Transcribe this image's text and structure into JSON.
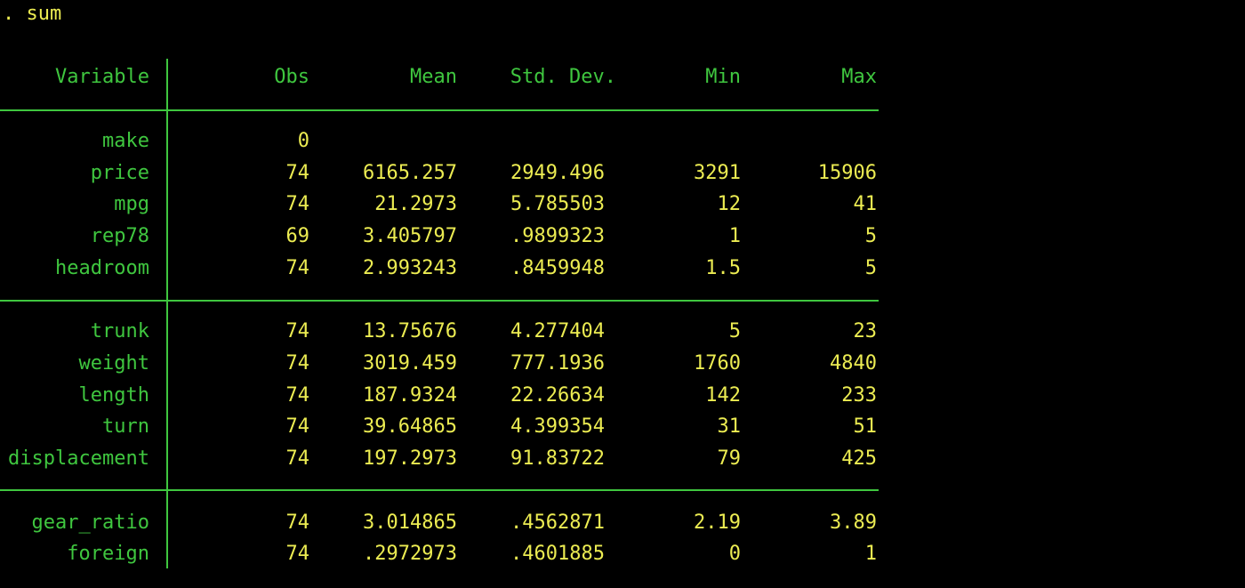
{
  "command": ". sum",
  "colors": {
    "background": "#000000",
    "label_green": "#3fc63f",
    "value_yellow": "#ecec52"
  },
  "headers": {
    "variable": "Variable",
    "obs": "Obs",
    "mean": "Mean",
    "sd": "Std. Dev.",
    "min": "Min",
    "max": "Max"
  },
  "rows": [
    {
      "variable": "make",
      "obs": "0",
      "mean": "",
      "sd": "",
      "min": "",
      "max": ""
    },
    {
      "variable": "price",
      "obs": "74",
      "mean": "6165.257",
      "sd": "2949.496",
      "min": "3291",
      "max": "15906"
    },
    {
      "variable": "mpg",
      "obs": "74",
      "mean": "21.2973",
      "sd": "5.785503",
      "min": "12",
      "max": "41"
    },
    {
      "variable": "rep78",
      "obs": "69",
      "mean": "3.405797",
      "sd": ".9899323",
      "min": "1",
      "max": "5"
    },
    {
      "variable": "headroom",
      "obs": "74",
      "mean": "2.993243",
      "sd": ".8459948",
      "min": "1.5",
      "max": "5"
    },
    {
      "variable": "trunk",
      "obs": "74",
      "mean": "13.75676",
      "sd": "4.277404",
      "min": "5",
      "max": "23"
    },
    {
      "variable": "weight",
      "obs": "74",
      "mean": "3019.459",
      "sd": "777.1936",
      "min": "1760",
      "max": "4840"
    },
    {
      "variable": "length",
      "obs": "74",
      "mean": "187.9324",
      "sd": "22.26634",
      "min": "142",
      "max": "233"
    },
    {
      "variable": "turn",
      "obs": "74",
      "mean": "39.64865",
      "sd": "4.399354",
      "min": "31",
      "max": "51"
    },
    {
      "variable": "displacement",
      "obs": "74",
      "mean": "197.2973",
      "sd": "91.83722",
      "min": "79",
      "max": "425"
    },
    {
      "variable": "gear_ratio",
      "obs": "74",
      "mean": "3.014865",
      "sd": ".4562871",
      "min": "2.19",
      "max": "3.89"
    },
    {
      "variable": "foreign",
      "obs": "74",
      "mean": ".2972973",
      "sd": ".4601885",
      "min": "0",
      "max": "1"
    }
  ]
}
